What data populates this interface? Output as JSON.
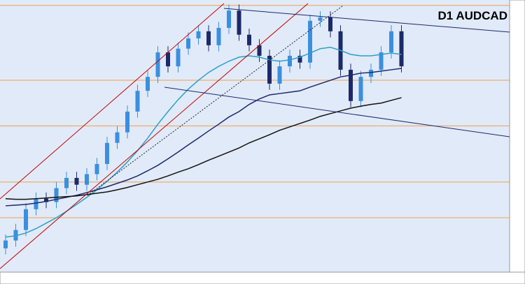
{
  "chart_data": {
    "type": "candlestick",
    "title": "D1 AUDCAD",
    "ylim": [
      0.955,
      1.035
    ],
    "levels": [
      1.0334,
      1.0114,
      0.998,
      0.9815,
      0.971
    ],
    "level_color": "#f0a050",
    "up_color": "#3a8fe0",
    "down_color": "#1c2a6b",
    "open": [
      0.962,
      0.9643,
      0.9674,
      0.9735,
      0.9766,
      0.9756,
      0.9797,
      0.9827,
      0.9807,
      0.9838,
      0.9868,
      0.993,
      0.9961,
      1.0022,
      1.0083,
      1.0124,
      1.0196,
      1.0155,
      1.0207,
      1.0237,
      1.0258,
      1.0217,
      1.0268,
      1.0319,
      1.0248,
      1.0217,
      1.0186,
      1.0104,
      1.0155,
      1.0186,
      1.0166,
      1.0289,
      1.0299,
      1.0258,
      1.0145,
      1.0053,
      1.0124,
      1.0145,
      1.0196,
      1.0258
    ],
    "high": [
      0.9661,
      0.9692,
      0.9753,
      0.9784,
      0.9784,
      0.9815,
      0.9845,
      0.9845,
      0.9856,
      0.9886,
      0.9948,
      0.9979,
      1.004,
      1.0101,
      1.0142,
      1.0214,
      1.0214,
      1.0225,
      1.0255,
      1.0276,
      1.0276,
      1.0286,
      1.0337,
      1.0337,
      1.0266,
      1.0235,
      1.0204,
      1.0173,
      1.0204,
      1.0204,
      1.0307,
      1.0317,
      1.0317,
      1.0276,
      1.0163,
      1.0142,
      1.0163,
      1.0214,
      1.0276,
      1.0276
    ],
    "low": [
      0.9602,
      0.9625,
      0.9656,
      0.9717,
      0.9738,
      0.9738,
      0.9779,
      0.9789,
      0.9789,
      0.982,
      0.985,
      0.9912,
      0.9943,
      1.0004,
      1.0065,
      1.0106,
      1.0137,
      1.0137,
      1.0189,
      1.0219,
      1.0199,
      1.0199,
      1.025,
      1.023,
      1.0199,
      1.0168,
      1.0086,
      1.0086,
      1.0137,
      1.0148,
      1.0148,
      1.0271,
      1.024,
      1.0127,
      1.0035,
      1.0035,
      1.0106,
      1.0127,
      1.0178,
      1.0137
    ],
    "close": [
      0.9643,
      0.9674,
      0.9735,
      0.9766,
      0.9756,
      0.9797,
      0.9827,
      0.9807,
      0.9838,
      0.9868,
      0.993,
      0.9961,
      1.0022,
      1.0083,
      1.0124,
      1.0196,
      1.0155,
      1.0207,
      1.0237,
      1.0258,
      1.0217,
      1.0268,
      1.0319,
      1.0248,
      1.0217,
      1.0186,
      1.0104,
      1.0155,
      1.0186,
      1.0166,
      1.0289,
      1.0299,
      1.0258,
      1.0145,
      1.0053,
      1.0124,
      1.0145,
      1.0196,
      1.0258,
      1.0155
    ],
    "series": [
      {
        "color": "#2aa0c8",
        "values": [
          0.9653,
          0.9657,
          0.9665,
          0.9678,
          0.9694,
          0.971,
          0.9729,
          0.9749,
          0.977,
          0.9792,
          0.9817,
          0.9844,
          0.9874,
          0.9907,
          0.9944,
          0.9985,
          1.0022,
          1.0057,
          1.0088,
          1.0114,
          1.0137,
          1.0155,
          1.017,
          1.0182,
          1.0186,
          1.0182,
          1.0174,
          1.017,
          1.0174,
          1.0182,
          1.0194,
          1.0207,
          1.0211,
          1.0202,
          1.019,
          1.0186,
          1.0186,
          1.019,
          1.0194,
          1.019
        ]
      },
      {
        "color": "#1a2870",
        "values": [
          0.9745,
          0.9747,
          0.9749,
          0.9753,
          0.9758,
          0.9764,
          0.977,
          0.9776,
          0.9784,
          0.9792,
          0.9801,
          0.9811,
          0.9821,
          0.9833,
          0.9848,
          0.9864,
          0.9883,
          0.9903,
          0.9924,
          0.9944,
          0.9965,
          0.9985,
          1.0006,
          1.0022,
          1.0043,
          1.0059,
          1.0071,
          1.0075,
          1.0079,
          1.0083,
          1.0094,
          1.0104,
          1.0114,
          1.0124,
          1.0129,
          1.0135,
          1.0137,
          1.0141,
          1.0145,
          1.0149
        ]
      },
      {
        "color": "#111111",
        "values": [
          0.9766,
          0.9764,
          0.9764,
          0.9766,
          0.9768,
          0.977,
          0.9772,
          0.9774,
          0.9778,
          0.9782,
          0.9786,
          0.9792,
          0.9799,
          0.9807,
          0.9815,
          0.9823,
          0.9833,
          0.9844,
          0.9854,
          0.9866,
          0.9879,
          0.9891,
          0.9903,
          0.9915,
          0.993,
          0.9942,
          0.9954,
          0.9967,
          0.9977,
          0.9987,
          0.9997,
          1.0008,
          1.0016,
          1.0024,
          1.0032,
          1.0038,
          1.0043,
          1.0047,
          1.0055,
          1.0063
        ]
      }
    ]
  }
}
